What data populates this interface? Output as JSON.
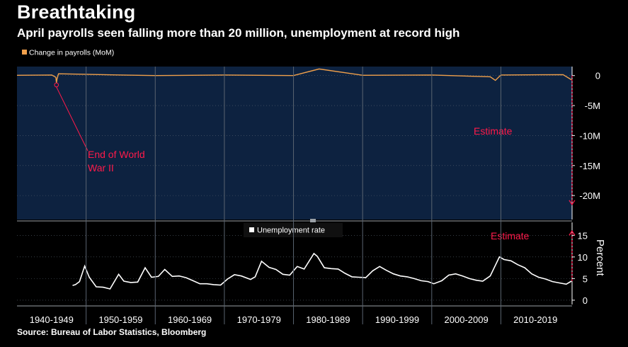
{
  "header": {
    "title": "Breathtaking",
    "subtitle": "April payrolls seen falling more than 20 million, unemployment at record high"
  },
  "footer": {
    "source": "Source: Bureau of Labor Statistics, Bloomberg"
  },
  "colors": {
    "background": "#000000",
    "top_panel_fill": "#0d2240",
    "payrolls_line": "#f0a04b",
    "unemployment_line": "#ffffff",
    "estimate": "#ff1a4a",
    "grid": "#5a6470",
    "axis_text": "#ffffff"
  },
  "chart_data": [
    {
      "type": "line",
      "panel": "payrolls",
      "legend": {
        "label": "Change in payrolls (MoM)",
        "placement": "top-left"
      },
      "y_unit": "millions",
      "ylim": [
        -24,
        1.5
      ],
      "ytick_values": [
        0,
        -5,
        -10,
        -15,
        -20
      ],
      "ytick_labels": [
        "0",
        "-5M",
        "-10M",
        "-15M",
        "-20M"
      ],
      "x": [
        "1940",
        "1945-01",
        "1945-08",
        "1945-09",
        "1945-10",
        "1946",
        "1955",
        "1960",
        "1970",
        "1980",
        "1983-09",
        "1990",
        "2000",
        "2008-06",
        "2009-03",
        "2010",
        "2019",
        "2020-03",
        "2020-04"
      ],
      "values": [
        0.05,
        0.1,
        -0.3,
        -1.2,
        -0.6,
        0.3,
        0.1,
        0.0,
        0.1,
        0.0,
        1.1,
        0.05,
        0.1,
        -0.2,
        -0.8,
        0.1,
        0.15,
        -0.7,
        -21.5
      ],
      "estimate_point": {
        "x": "2020-04",
        "value": -21.5
      },
      "annotations": [
        {
          "text_lines": [
            "End of World",
            "War II"
          ],
          "target_x": "1945-09"
        },
        {
          "text": "Estimate"
        }
      ]
    },
    {
      "type": "line",
      "panel": "unemployment",
      "legend": {
        "label": "Unemployment rate",
        "placement": "top-center"
      },
      "ylabel": "Percent",
      "ylim": [
        -1,
        18
      ],
      "ytick_values": [
        0,
        5,
        10,
        15
      ],
      "ytick_labels": [
        "0",
        "5",
        "10",
        "15"
      ],
      "x": [
        "1948-01",
        "1948-06",
        "1949-01",
        "1949-10",
        "1950-06",
        "1951-06",
        "1952-06",
        "1953-06",
        "1954-09",
        "1955-06",
        "1956-06",
        "1957-06",
        "1958-07",
        "1959-06",
        "1960-06",
        "1961-05",
        "1962-06",
        "1963-06",
        "1964-06",
        "1965-06",
        "1966-06",
        "1967-06",
        "1968-06",
        "1969-06",
        "1970-06",
        "1971-06",
        "1972-06",
        "1973-10",
        "1974-06",
        "1975-05",
        "1976-06",
        "1977-06",
        "1978-06",
        "1979-06",
        "1980-07",
        "1981-07",
        "1982-12",
        "1983-06",
        "1984-06",
        "1985-06",
        "1986-06",
        "1987-06",
        "1988-06",
        "1989-06",
        "1990-06",
        "1991-06",
        "1992-06",
        "1993-06",
        "1994-06",
        "1995-06",
        "1996-06",
        "1997-06",
        "1998-06",
        "1999-06",
        "2000-04",
        "2001-06",
        "2002-06",
        "2003-06",
        "2004-06",
        "2005-06",
        "2006-06",
        "2007-05",
        "2008-06",
        "2009-10",
        "2010-06",
        "2011-06",
        "2012-06",
        "2013-06",
        "2014-06",
        "2015-06",
        "2016-06",
        "2017-06",
        "2018-06",
        "2019-06",
        "2020-03",
        "2020-04"
      ],
      "values": [
        3.4,
        3.6,
        4.3,
        7.9,
        5.3,
        3.1,
        3.0,
        2.6,
        6.0,
        4.4,
        4.1,
        4.2,
        7.5,
        5.3,
        5.5,
        7.1,
        5.5,
        5.6,
        5.2,
        4.5,
        3.8,
        3.8,
        3.6,
        3.5,
        4.9,
        5.9,
        5.6,
        4.8,
        5.4,
        9.0,
        7.6,
        7.1,
        6.0,
        5.8,
        7.8,
        7.2,
        10.8,
        10.1,
        7.5,
        7.3,
        7.2,
        6.2,
        5.4,
        5.3,
        5.2,
        6.8,
        7.8,
        6.9,
        6.1,
        5.6,
        5.4,
        5.0,
        4.5,
        4.3,
        3.8,
        4.5,
        5.8,
        6.1,
        5.6,
        5.0,
        4.6,
        4.4,
        5.6,
        10.0,
        9.4,
        9.1,
        8.2,
        7.5,
        6.1,
        5.3,
        4.9,
        4.3,
        4.0,
        3.7,
        4.4,
        16.0
      ],
      "estimate_point": {
        "x": "2020-04",
        "value": 16.0
      },
      "annotations": [
        {
          "text": "Estimate"
        }
      ]
    }
  ],
  "x_axis": {
    "start": 1940,
    "end": 2020.3,
    "decades": [
      "1940-1949",
      "1950-1959",
      "1960-1969",
      "1970-1979",
      "1980-1989",
      "1990-1999",
      "2000-2009",
      "2010-2019"
    ]
  }
}
